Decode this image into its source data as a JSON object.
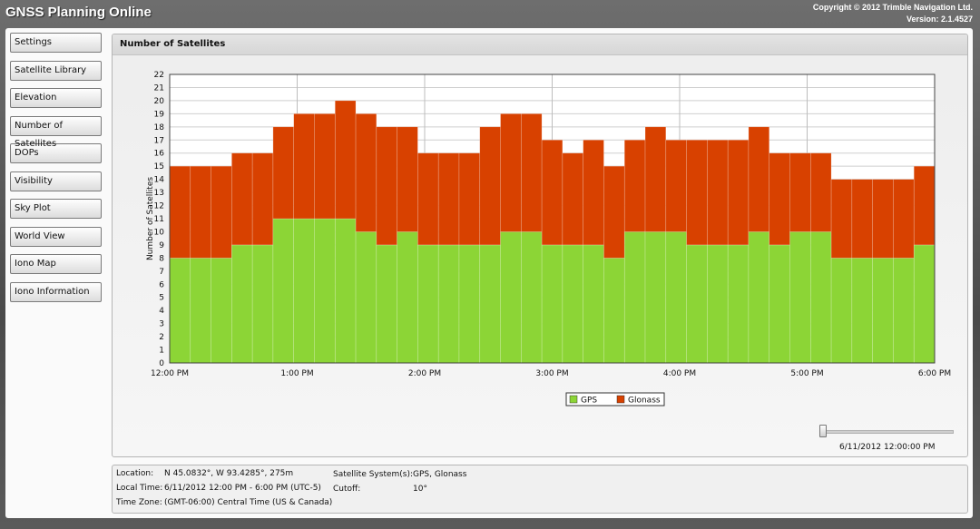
{
  "app": {
    "title": "GNSS Planning Online",
    "copyright": "Copyright ©  2012 Trimble Navigation Ltd.",
    "version": "Version: 2.1.4527"
  },
  "sidebar": {
    "items": [
      {
        "label": "Settings"
      },
      {
        "label": "Satellite Library"
      },
      {
        "label": "Elevation"
      },
      {
        "label": "Number of Satellites"
      },
      {
        "label": "DOPs"
      },
      {
        "label": "Visibility"
      },
      {
        "label": "Sky Plot"
      },
      {
        "label": "World View"
      },
      {
        "label": "Iono Map"
      },
      {
        "label": "Iono Information"
      }
    ]
  },
  "panel": {
    "title": "Number of Satellites"
  },
  "chart_data": {
    "type": "bar",
    "stacked": true,
    "ylabel": "Number of Satellites",
    "ylim": [
      0,
      22
    ],
    "y_ticks": [
      0,
      1,
      2,
      3,
      4,
      5,
      6,
      7,
      8,
      9,
      10,
      11,
      12,
      13,
      14,
      15,
      16,
      17,
      18,
      19,
      20,
      21,
      22
    ],
    "x_tick_labels": [
      "12:00 PM",
      "1:00 PM",
      "2:00 PM",
      "3:00 PM",
      "4:00 PM",
      "5:00 PM",
      "6:00 PM"
    ],
    "intervals": 36,
    "series": [
      {
        "name": "GPS",
        "color": "#8cd536",
        "values": [
          8,
          8,
          8,
          9,
          9,
          11,
          11,
          11,
          11,
          10,
          9,
          10,
          9,
          9,
          9,
          9,
          10,
          10,
          9,
          9,
          9,
          8,
          10,
          10,
          10,
          9,
          9,
          9,
          10,
          9,
          10,
          10,
          8,
          8,
          8,
          8,
          9
        ]
      },
      {
        "name": "Glonass",
        "color": "#d84100",
        "values": [
          7,
          7,
          7,
          7,
          7,
          7,
          8,
          8,
          9,
          9,
          9,
          8,
          7,
          7,
          7,
          9,
          9,
          9,
          8,
          7,
          8,
          7,
          7,
          8,
          7,
          8,
          8,
          8,
          8,
          7,
          6,
          6,
          6,
          6,
          6,
          6,
          6
        ]
      }
    ],
    "legend": "bottom-center",
    "grid": true
  },
  "slider": {
    "time": "6/11/2012 12:00:00 PM",
    "value": 0
  },
  "info": {
    "location_label": "Location:",
    "location_value": "N 45.0832°, W 93.4285°, 275m",
    "local_time_label": "Local Time:",
    "local_time_value": "6/11/2012 12:00 PM - 6:00 PM (UTC-5)",
    "time_zone_label": "Time Zone:",
    "time_zone_value": "(GMT-06:00) Central Time (US & Canada)",
    "systems_label": "Satellite System(s):",
    "systems_value": "GPS, Glonass",
    "cutoff_label": "Cutoff:",
    "cutoff_value": "10°"
  }
}
